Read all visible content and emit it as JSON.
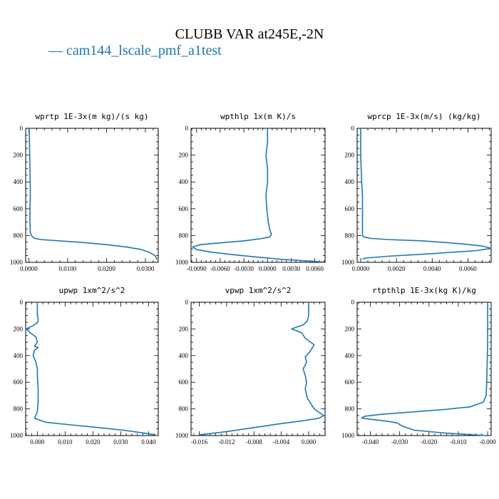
{
  "title": "CLUBB VAR at245E,-2N",
  "legend": {
    "label": "— cam144_lscale_pmf_a1test",
    "color": "#1f77b4"
  },
  "chart_data": [
    {
      "type": "line",
      "title": "wprtp  1E-3x(m kg)/(s kg)",
      "xlim": [
        -0.0008,
        0.0333
      ],
      "ylim": [
        1000,
        0
      ],
      "xticks": [
        0,
        0.01,
        0.02,
        0.03
      ],
      "xtick_labels": [
        "0.0000",
        "0.0100",
        "0.0200",
        "0.0300"
      ],
      "yticks": [
        0,
        200,
        400,
        600,
        800,
        1000
      ],
      "series": [
        {
          "x": [
            0.0001,
            0.0002,
            0.0003,
            0.0004,
            0.0004,
            0.0003,
            0.0003,
            0.0004,
            0.0008,
            0.0015,
            0.003,
            0.008,
            0.014,
            0.02,
            0.025,
            0.029,
            0.031,
            0.0325,
            0.033
          ],
          "y": [
            0,
            150,
            300,
            450,
            520,
            600,
            700,
            780,
            805,
            820,
            830,
            840,
            852,
            868,
            885,
            905,
            925,
            950,
            980
          ]
        }
      ]
    },
    {
      "type": "line",
      "title": "wpthlp  1x(m K)/s",
      "xlim": [
        -0.0097,
        0.0073
      ],
      "ylim": [
        1000,
        0
      ],
      "xticks": [
        -0.009,
        -0.006,
        -0.003,
        0,
        0.003,
        0.006
      ],
      "xtick_labels": [
        "-0.0090",
        "-0.0060",
        "-0.0030",
        "0.0000",
        "0.0030",
        "0.0060"
      ],
      "yticks": [
        0,
        200,
        400,
        600,
        800,
        1000
      ],
      "series": [
        {
          "x": [
            0.0,
            0.0,
            -0.0002,
            0.0,
            0.0,
            -0.0002,
            -0.0001,
            0.0001,
            0.0003,
            0.0005,
            0.0003,
            -0.001,
            -0.003,
            -0.006,
            -0.0085,
            -0.0095,
            -0.009,
            -0.007,
            -0.004,
            -0.001,
            0.002,
            0.005,
            0.007
          ],
          "y": [
            0,
            100,
            200,
            300,
            400,
            500,
            600,
            700,
            760,
            790,
            810,
            825,
            840,
            855,
            868,
            885,
            905,
            925,
            945,
            962,
            978,
            990,
            997
          ]
        }
      ]
    },
    {
      "type": "line",
      "title": "wprcp  1E-3x(m/s) (kg/kg)",
      "xlim": [
        -0.0002,
        0.0073
      ],
      "ylim": [
        1000,
        0
      ],
      "xticks": [
        0,
        0.002,
        0.004,
        0.006
      ],
      "xtick_labels": [
        "0.0000",
        "0.0020",
        "0.0040",
        "0.0060"
      ],
      "yticks": [
        0,
        200,
        400,
        600,
        800,
        1000
      ],
      "series": [
        {
          "x": [
            0.0,
            0.0,
            5e-05,
            0.0001,
            0.0001,
            0.0001,
            0.0001,
            0.0001,
            0.0002,
            0.0006,
            0.0015,
            0.0035,
            0.0055,
            0.0068,
            0.0073,
            0.0065,
            0.004,
            0.0015,
            0.0003,
            0.0001
          ],
          "y": [
            0,
            200,
            400,
            500,
            600,
            700,
            780,
            800,
            812,
            822,
            830,
            840,
            860,
            878,
            895,
            912,
            935,
            955,
            968,
            975
          ]
        }
      ]
    },
    {
      "type": "line",
      "title": "upwp  1xm^2/s^2",
      "xlim": [
        -0.0042,
        0.0435
      ],
      "ylim": [
        1000,
        0
      ],
      "xticks": [
        0,
        0.01,
        0.02,
        0.03,
        0.04
      ],
      "xtick_labels": [
        "0.000",
        "0.010",
        "0.020",
        "0.030",
        "0.040"
      ],
      "yticks": [
        0,
        200,
        400,
        600,
        800,
        1000
      ],
      "series": [
        {
          "x": [
            0.0,
            0.0,
            0.0003,
            0.0002,
            -0.0015,
            -0.004,
            -0.0025,
            -0.0005,
            0.0,
            -0.001,
            0.0003,
            -0.001,
            -0.0015,
            -0.0005,
            0.0,
            0.0,
            0.0003,
            0.0003,
            0.0,
            -0.001,
            0.003,
            0.012,
            0.022,
            0.031,
            0.038,
            0.0425
          ],
          "y": [
            0,
            100,
            120,
            150,
            175,
            200,
            230,
            260,
            300,
            330,
            340,
            360,
            400,
            450,
            500,
            550,
            650,
            750,
            820,
            870,
            900,
            920,
            940,
            960,
            980,
            995
          ]
        }
      ]
    },
    {
      "type": "line",
      "title": "vpwp  1xm^2/s^2",
      "xlim": [
        -0.0172,
        0.0024
      ],
      "ylim": [
        1000,
        0
      ],
      "xticks": [
        -0.016,
        -0.012,
        -0.008,
        -0.004,
        0
      ],
      "xtick_labels": [
        "-0.016",
        "-0.012",
        "-0.008",
        "-0.004",
        "0.000"
      ],
      "yticks": [
        0,
        200,
        400,
        600,
        800,
        1000
      ],
      "series": [
        {
          "x": [
            0.0,
            0.0,
            -0.0002,
            -0.0008,
            -0.0025,
            -0.001,
            -0.0005,
            0.0003,
            0.0008,
            0.0002,
            -0.0005,
            -0.0003,
            -0.0008,
            -0.0005,
            -0.0003,
            -0.0005,
            -0.0002,
            0.0008,
            0.0022,
            0.0015,
            -0.001,
            -0.004,
            -0.008,
            -0.012,
            -0.016
          ],
          "y": [
            0,
            100,
            140,
            170,
            200,
            230,
            270,
            300,
            320,
            370,
            410,
            450,
            500,
            550,
            600,
            650,
            720,
            800,
            850,
            870,
            890,
            910,
            940,
            970,
            995
          ]
        }
      ]
    },
    {
      "type": "line",
      "title": "rtpthlp  1E-3x(kg K)/kg",
      "xlim": [
        -0.0445,
        0.0012
      ],
      "ylim": [
        1000,
        0
      ],
      "xticks": [
        -0.04,
        -0.03,
        -0.02,
        -0.01,
        0
      ],
      "xtick_labels": [
        "-0.040",
        "-0.030",
        "-0.020",
        "-0.010",
        "-0.000"
      ],
      "yticks": [
        0,
        200,
        400,
        600,
        800,
        1000
      ],
      "series": [
        {
          "x": [
            0.0,
            0.0,
            -0.0002,
            -0.0003,
            -0.0005,
            -0.0015,
            -0.006,
            -0.015,
            -0.027,
            -0.036,
            -0.042,
            -0.043,
            -0.04,
            -0.035,
            -0.031,
            -0.029,
            -0.025,
            -0.015,
            -0.006,
            -0.0005
          ],
          "y": [
            0,
            300,
            500,
            600,
            700,
            750,
            785,
            805,
            825,
            840,
            855,
            868,
            878,
            890,
            905,
            930,
            960,
            980,
            993,
            1000
          ]
        }
      ]
    }
  ]
}
